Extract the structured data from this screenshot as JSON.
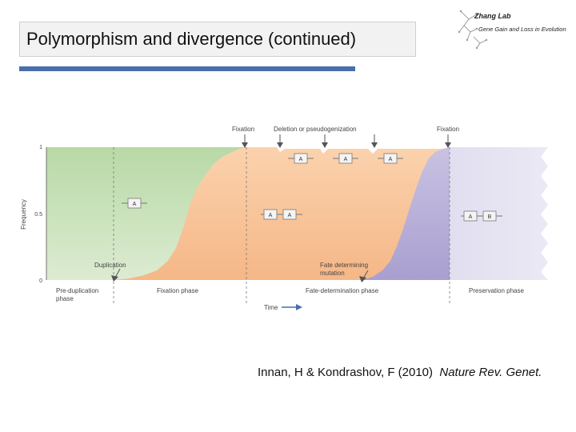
{
  "slide": {
    "title": "Polymorphism and divergence (continued)"
  },
  "logo": {
    "name": "Zhang Lab",
    "tagline": "Gene Gain and Loss in Evolution"
  },
  "figure": {
    "top_labels": {
      "fixation_1": "Fixation",
      "deletion": "Deletion or pseudogenization",
      "fixation_2": "Fixation"
    },
    "y_axis": {
      "label": "Frequency",
      "ticks": [
        "1",
        "0.5",
        "0"
      ]
    },
    "annotations": {
      "duplication": "Duplication",
      "fate_line1": "Fate determining",
      "fate_line2": "mutation"
    },
    "gene_boxes": {
      "a": "A",
      "b": "B"
    },
    "phases": {
      "pre_dup_line1": "Pre-duplication",
      "pre_dup_line2": "phase",
      "fixation": "Fixation phase",
      "fate_determination": "Fate-determination phase",
      "preservation": "Preservation phase"
    },
    "time_label": "Time",
    "colors": {
      "green": "#c4dfb5",
      "orange": "#f9c9a0",
      "purple": "#bdb4d9",
      "pale_purple": "#e3e1f0",
      "arrow": "#4a6eab"
    }
  },
  "citation": {
    "authors": "Innan, H & Kondrashov, F (2010)",
    "journal": "Nature Rev. Genet."
  }
}
